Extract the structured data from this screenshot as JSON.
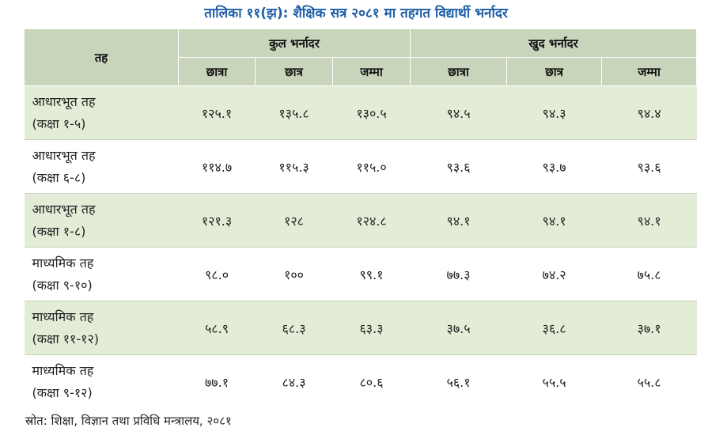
{
  "title": "तालिका ११(झ): शैक्षिक सत्र २०८१ मा तहगत विद्यार्थी भर्नादर",
  "table": {
    "level_header": "तह",
    "groups": [
      {
        "label": "कुल भर्नादर",
        "columns": [
          "छात्रा",
          "छात्र",
          "जम्मा"
        ]
      },
      {
        "label": "खुद भर्नादर",
        "columns": [
          "छात्रा",
          "छात्र",
          "जम्मा"
        ]
      }
    ],
    "rows": [
      {
        "level": "आधारभूत तह",
        "grades": "(कक्षा १-५)",
        "values": [
          "१२५.१",
          "१३५.८",
          "१३०.५",
          "९४.५",
          "९४.३",
          "९४.४"
        ]
      },
      {
        "level": "आधारभूत तह",
        "grades": "(कक्षा ६-८)",
        "values": [
          "११४.७",
          "११५.३",
          "११५.०",
          "९३.६",
          "९३.७",
          "९३.६"
        ]
      },
      {
        "level": "आधारभूत तह",
        "grades": "(कक्षा १-८)",
        "values": [
          "१२१.३",
          "१२८",
          "१२४.८",
          "९४.१",
          "९४.१",
          "९४.१"
        ]
      },
      {
        "level": "माध्यमिक तह",
        "grades": "(कक्षा ९-१०)",
        "values": [
          "९८.०",
          "१००",
          "९९.१",
          "७७.३",
          "७४.२",
          "७५.८"
        ]
      },
      {
        "level": "माध्यमिक तह",
        "grades": "(कक्षा ११-१२)",
        "values": [
          "५८.९",
          "६८.३",
          "६३.३",
          "३७.५",
          "३६.८",
          "३७.१"
        ]
      },
      {
        "level": "माध्यमिक तह",
        "grades": "(कक्षा ९-१२)",
        "values": [
          "७७.१",
          "८४.३",
          "८०.६",
          "५६.१",
          "५५.५",
          "५५.८"
        ]
      }
    ]
  },
  "source": "स्रोत: शिक्षा, विज्ञान तथा प्रविधि मन्त्रालय, २०८१"
}
